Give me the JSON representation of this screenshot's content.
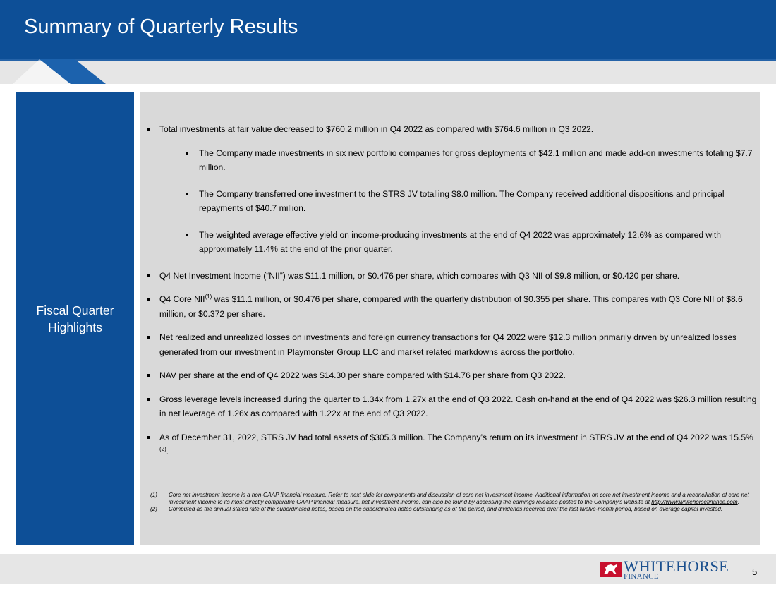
{
  "header": {
    "title": "Summary of Quarterly Results"
  },
  "sidebar": {
    "title": "Fiscal Quarter Highlights"
  },
  "highlights": {
    "b1": "Total investments at fair value decreased to $760.2 million in Q4 2022 as compared with $764.6 million in Q3 2022.",
    "b1_subs": [
      "The Company made investments in six new portfolio companies for gross deployments of $42.1 million and made add-on investments totaling $7.7 million.",
      "The Company transferred one investment to the STRS JV totalling $8.0 million. The Company received additional dispositions and principal repayments of $40.7 million.",
      "The weighted average effective yield on income-producing investments at the end of Q4 2022 was approximately 12.6% as compared with approximately 11.4% at the end of the prior quarter."
    ],
    "b2": "Q4 Net Investment Income (“NII”) was $11.1 million, or $0.476 per share, which compares with Q3 NII of $9.8 million, or $0.420 per share.",
    "b3_pre": "Q4 Core NII",
    "b3_sup": "(1)",
    "b3_post": " was $11.1 million, or $0.476 per share, compared with the quarterly distribution of $0.355 per share. This compares with Q3 Core NII of $8.6 million, or $0.372 per share.",
    "b4": "Net realized and unrealized losses on investments and foreign currency transactions for Q4 2022 were $12.3 million primarily driven by unrealized losses generated from our investment in Playmonster Group LLC and market related markdowns across the portfolio.",
    "b5": "NAV per share at the end of Q4 2022 was $14.30 per share compared with $14.76 per share from Q3 2022.",
    "b6": "Gross leverage levels increased during the quarter to 1.34x from 1.27x at the end of Q3 2022. Cash on-hand at the end of Q4 2022 was $26.3 million resulting in net leverage of 1.26x as compared with 1.22x at the end of Q3 2022.",
    "b7_pre": "As of December 31, 2022, STRS JV had total assets of $305.3 million. The Company’s return on its investment in STRS JV at the end of Q4 2022 was 15.5%",
    "b7_sup": "(2)",
    "b7_post": "."
  },
  "footnotes": {
    "fn1_num": "(1)",
    "fn1_text": "Core net investment income is a non-GAAP financial measure. Refer to next slide for components and discussion of core net investment income. Additional information on core net investment income and a reconciliation of core net investment income to its most directly comparable GAAP financial measure, net investment income, can also be found by accessing the earnings releases posted to the Company’s website at ",
    "fn1_link": "http://www.whitehorsefinance.com",
    "fn1_end": ".",
    "fn2_num": "(2)",
    "fn2_text": "Computed as the annual stated rate of the subordinated notes, based on the subordinated notes outstanding as of the period, and dividends received over the last twelve-month period, based on average capital invested."
  },
  "footer": {
    "logo_name": "WHITEHORSE",
    "logo_sub": "FINANCE",
    "page_number": "5"
  },
  "colors": {
    "brand_blue": "#0d4f97",
    "panel_gray": "#d9d9d9",
    "stripe_gray": "#e6e6e6",
    "logo_red": "#c8102e"
  }
}
